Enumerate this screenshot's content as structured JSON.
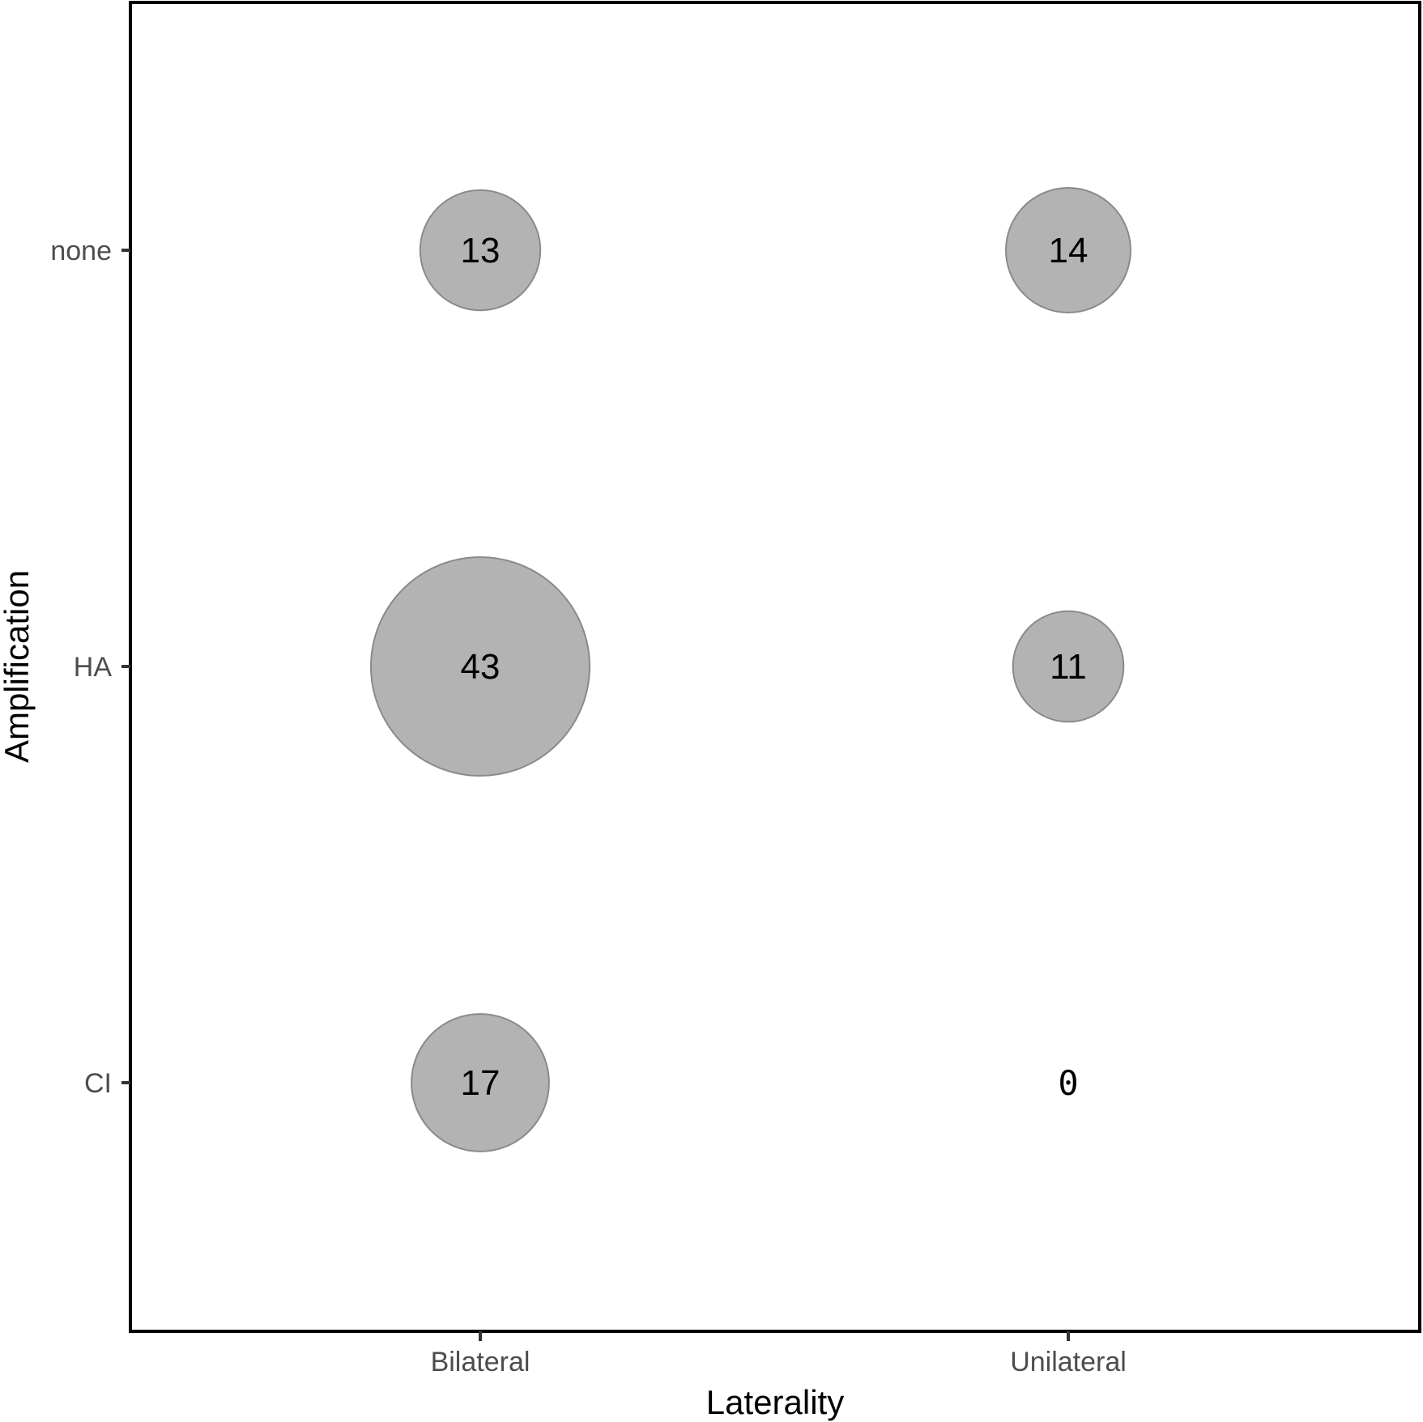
{
  "chart_data": {
    "type": "scatter",
    "subtype": "bubble",
    "title": "",
    "xlabel": "Laterality",
    "ylabel": "Amplification",
    "x_categories": [
      "Bilateral",
      "Unilateral"
    ],
    "y_categories": [
      "none",
      "HA",
      "CI"
    ],
    "points": [
      {
        "x": "Bilateral",
        "y": "none",
        "count": 13,
        "label": "13"
      },
      {
        "x": "Unilateral",
        "y": "none",
        "count": 14,
        "label": "14"
      },
      {
        "x": "Bilateral",
        "y": "HA",
        "count": 43,
        "label": "43"
      },
      {
        "x": "Unilateral",
        "y": "HA",
        "count": 11,
        "label": "11"
      },
      {
        "x": "Bilateral",
        "y": "CI",
        "count": 17,
        "label": "17"
      },
      {
        "x": "Unilateral",
        "y": "CI",
        "count": 0,
        "label": "0"
      }
    ],
    "size_encoding": "area proportional to count",
    "grid": false,
    "legend": "none",
    "colors": {
      "bubble_fill": "#b3b3b3",
      "bubble_stroke": "#8a8a8a",
      "panel_border": "#000000"
    }
  }
}
